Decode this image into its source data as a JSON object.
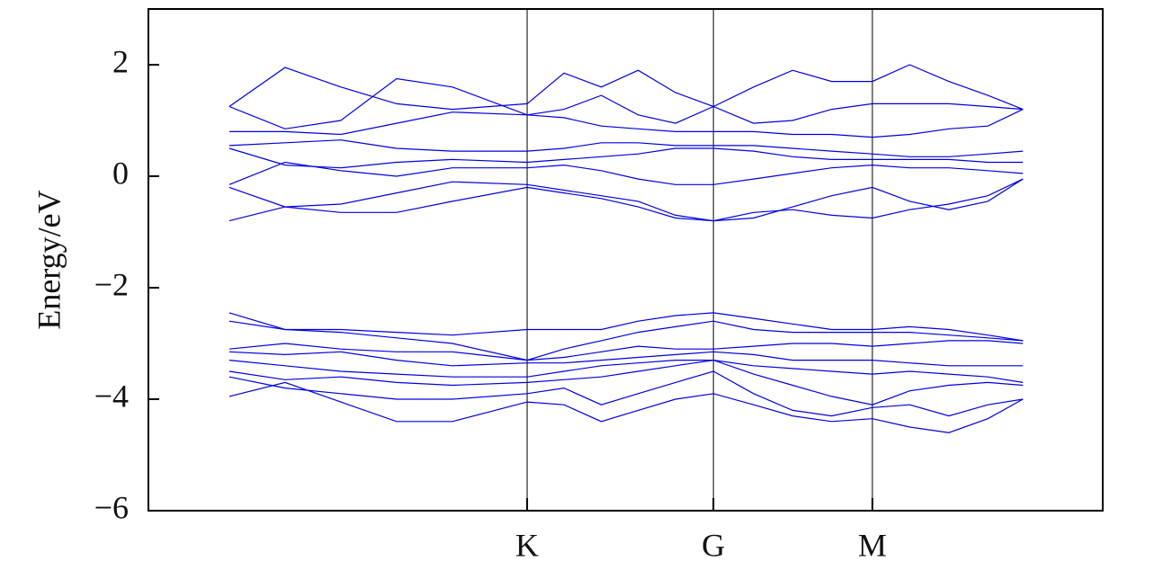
{
  "chart_data": {
    "type": "line",
    "ylabel": "Energy/eV",
    "x": [
      0,
      1,
      2,
      3,
      4,
      5.34,
      6,
      6.67,
      7.33,
      8,
      8.68,
      9.4,
      10.1,
      10.8,
      11.53,
      12.2,
      12.9,
      13.6,
      14.23
    ],
    "xlim": [
      -1.45,
      15.66
    ],
    "xticks": [
      {
        "value": 5.34,
        "label": "K"
      },
      {
        "value": 8.68,
        "label": "G"
      },
      {
        "value": 11.53,
        "label": "M"
      }
    ],
    "ylim": [
      -6,
      3
    ],
    "yticks": [
      {
        "value": -6,
        "label": "−6"
      },
      {
        "value": -4,
        "label": "−4"
      },
      {
        "value": -2,
        "label": "−2"
      },
      0,
      2
    ],
    "color": "#0000e0",
    "series": [
      {
        "values": [
          1.25,
          1.95,
          1.6,
          1.3,
          1.2,
          1.3,
          1.85,
          1.6,
          1.9,
          1.5,
          1.25,
          1.6,
          1.9,
          1.7,
          1.7,
          2.0,
          1.7,
          1.45,
          1.2
        ]
      },
      {
        "values": [
          1.25,
          0.85,
          1.0,
          1.75,
          1.6,
          1.1,
          1.2,
          1.45,
          1.1,
          0.95,
          1.25,
          0.95,
          1.0,
          1.2,
          1.3,
          1.3,
          1.3,
          1.25,
          1.2
        ]
      },
      {
        "values": [
          0.8,
          0.8,
          0.75,
          0.95,
          1.15,
          1.1,
          1.05,
          0.9,
          0.85,
          0.8,
          0.8,
          0.8,
          0.75,
          0.75,
          0.7,
          0.75,
          0.85,
          0.9,
          1.2
        ]
      },
      {
        "values": [
          0.55,
          0.6,
          0.65,
          0.5,
          0.45,
          0.45,
          0.5,
          0.6,
          0.6,
          0.55,
          0.55,
          0.55,
          0.5,
          0.45,
          0.4,
          0.35,
          0.35,
          0.4,
          0.45
        ]
      },
      {
        "values": [
          0.5,
          0.2,
          0.15,
          0.25,
          0.3,
          0.25,
          0.3,
          0.35,
          0.4,
          0.5,
          0.5,
          0.45,
          0.35,
          0.3,
          0.3,
          0.3,
          0.3,
          0.25,
          0.25
        ]
      },
      {
        "values": [
          -0.15,
          0.25,
          0.1,
          0,
          0.15,
          0.15,
          0.2,
          0.1,
          -0.05,
          -0.15,
          -0.15,
          -0.05,
          0.05,
          0.15,
          0.2,
          0.15,
          0.15,
          0.1,
          0.05
        ]
      },
      {
        "values": [
          -0.2,
          -0.55,
          -0.5,
          -0.3,
          -0.1,
          -0.15,
          -0.25,
          -0.35,
          -0.45,
          -0.7,
          -0.8,
          -0.75,
          -0.55,
          -0.35,
          -0.2,
          -0.45,
          -0.6,
          -0.45,
          -0.05
        ]
      },
      {
        "values": [
          -0.8,
          -0.55,
          -0.65,
          -0.65,
          -0.45,
          -0.2,
          -0.3,
          -0.4,
          -0.55,
          -0.75,
          -0.8,
          -0.65,
          -0.6,
          -0.7,
          -0.75,
          -0.6,
          -0.5,
          -0.35,
          -0.05
        ]
      },
      {
        "values": [
          -2.45,
          -2.75,
          -2.75,
          -2.8,
          -2.85,
          -2.75,
          -2.75,
          -2.75,
          -2.6,
          -2.5,
          -2.45,
          -2.55,
          -2.65,
          -2.75,
          -2.75,
          -2.7,
          -2.75,
          -2.85,
          -2.95
        ]
      },
      {
        "values": [
          -2.6,
          -2.75,
          -2.8,
          -2.9,
          -3.0,
          -3.3,
          -3.1,
          -2.95,
          -2.8,
          -2.7,
          -2.6,
          -2.75,
          -2.8,
          -2.8,
          -2.8,
          -2.8,
          -2.85,
          -2.9,
          -2.95
        ]
      },
      {
        "values": [
          -3.1,
          -3.0,
          -3.1,
          -3.15,
          -3.15,
          -3.3,
          -3.25,
          -3.15,
          -3.05,
          -3.1,
          -3.1,
          -3.05,
          -3.0,
          -3.0,
          -3.05,
          -3.0,
          -2.95,
          -2.95,
          -3.0
        ]
      },
      {
        "values": [
          -3.15,
          -3.2,
          -3.15,
          -3.3,
          -3.4,
          -3.35,
          -3.35,
          -3.3,
          -3.25,
          -3.2,
          -3.15,
          -3.2,
          -3.3,
          -3.3,
          -3.3,
          -3.35,
          -3.4,
          -3.4,
          -3.4
        ]
      },
      {
        "values": [
          -3.3,
          -3.4,
          -3.5,
          -3.55,
          -3.6,
          -3.6,
          -3.5,
          -3.4,
          -3.35,
          -3.3,
          -3.3,
          -3.4,
          -3.45,
          -3.5,
          -3.55,
          -3.5,
          -3.55,
          -3.6,
          -3.7
        ]
      },
      {
        "values": [
          -3.5,
          -3.65,
          -3.6,
          -3.7,
          -3.75,
          -3.7,
          -3.65,
          -3.6,
          -3.5,
          -3.4,
          -3.3,
          -3.55,
          -3.75,
          -3.95,
          -4.1,
          -3.85,
          -3.75,
          -3.7,
          -3.75
        ]
      },
      {
        "values": [
          -3.6,
          -3.8,
          -3.9,
          -4.0,
          -4.0,
          -3.9,
          -3.8,
          -4.1,
          -3.9,
          -3.7,
          -3.5,
          -3.9,
          -4.2,
          -4.3,
          -4.15,
          -4.1,
          -4.3,
          -4.1,
          -4.0
        ]
      },
      {
        "values": [
          -3.95,
          -3.7,
          -4.05,
          -4.4,
          -4.4,
          -4.05,
          -4.1,
          -4.4,
          -4.2,
          -4.0,
          -3.9,
          -4.1,
          -4.3,
          -4.4,
          -4.35,
          -4.5,
          -4.6,
          -4.35,
          -4.0
        ]
      }
    ]
  }
}
